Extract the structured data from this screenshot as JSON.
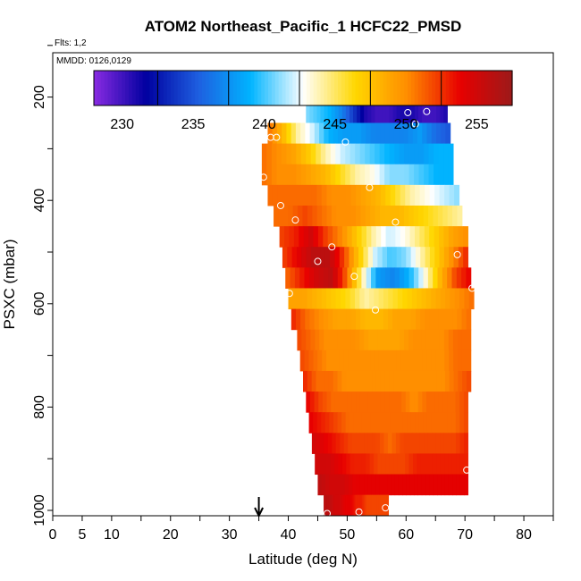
{
  "chart_data": {
    "type": "heatmap",
    "title": "ATOM2 Northeast_Pacific_1 HCFC22_PMSD",
    "info_lines": [
      "Flts: 1,2",
      "MMDD: 0126,0129"
    ],
    "xlabel": "Latitude (deg N)",
    "ylabel": "PSXC (mbar)",
    "xlim": [
      0,
      85
    ],
    "ylim": [
      1000,
      0
    ],
    "xticks": [
      0,
      5,
      10,
      20,
      30,
      40,
      50,
      60,
      70,
      80
    ],
    "yticks": [
      200,
      400,
      600,
      800,
      1000
    ],
    "colorbar": {
      "min": 228,
      "max": 257.5,
      "ticks": [
        230,
        235,
        240,
        245,
        250,
        255
      ],
      "colors": [
        "#8a2be2",
        "#0000a0",
        "#1e5fe0",
        "#00b4ff",
        "#ffffff",
        "#ffd700",
        "#ff8c00",
        "#e80000",
        "#9c1a1a"
      ]
    },
    "arrow_latitude": 35,
    "rows": [
      {
        "p": 230,
        "x0": 43,
        "x1": 67,
        "v": [
          241,
          240,
          239,
          237,
          234,
          231,
          230,
          230,
          231,
          231,
          230,
          230,
          231
        ]
      },
      {
        "p": 270,
        "x0": 36.5,
        "x1": 67.5,
        "v": [
          251,
          248,
          244,
          242,
          239,
          238,
          238,
          237,
          237,
          237,
          238,
          236,
          235
        ]
      },
      {
        "p": 310,
        "x0": 35.5,
        "x1": 68,
        "v": [
          251,
          250,
          249,
          247,
          244,
          242,
          241,
          240,
          239,
          238,
          238,
          239,
          239
        ]
      },
      {
        "p": 350,
        "x0": 35.5,
        "x1": 68,
        "v": [
          251,
          250,
          250,
          249,
          248,
          246,
          244,
          243,
          241,
          241,
          240,
          239,
          239
        ]
      },
      {
        "p": 390,
        "x0": 36.5,
        "x1": 69,
        "v": [
          251,
          251,
          251,
          251,
          250,
          250,
          249,
          248,
          246,
          244,
          243,
          242,
          241
        ]
      },
      {
        "p": 430,
        "x0": 37.5,
        "x1": 69.5,
        "v": [
          251,
          251,
          252,
          251,
          250,
          250,
          249,
          248,
          248,
          247,
          246,
          245,
          244
        ]
      },
      {
        "p": 470,
        "x0": 38.5,
        "x1": 70.5,
        "v": [
          252,
          253,
          255,
          252,
          250,
          247,
          244,
          242,
          243,
          245,
          247,
          249,
          250
        ]
      },
      {
        "p": 510,
        "x0": 39,
        "x1": 70.5,
        "v": [
          252,
          254,
          256,
          256,
          252,
          247,
          242,
          240,
          241,
          244,
          247,
          250,
          253
        ]
      },
      {
        "p": 550,
        "x0": 39.5,
        "x1": 71,
        "v": [
          251,
          253,
          255,
          256,
          251,
          244,
          238,
          237,
          239,
          243,
          248,
          252,
          254
        ]
      },
      {
        "p": 590,
        "x0": 40,
        "x1": 71.5,
        "v": [
          249,
          249,
          248,
          247,
          246,
          244,
          245,
          246,
          247,
          248,
          249,
          250,
          251
        ]
      },
      {
        "p": 630,
        "x0": 40.5,
        "x1": 71,
        "v": [
          253,
          251,
          250,
          249,
          249,
          248,
          248,
          249,
          249,
          250,
          250,
          250,
          251
        ]
      },
      {
        "p": 670,
        "x0": 41.5,
        "x1": 71,
        "v": [
          252,
          251,
          250,
          250,
          250,
          249,
          249,
          249,
          250,
          250,
          250,
          251,
          251
        ]
      },
      {
        "p": 710,
        "x0": 42,
        "x1": 71,
        "v": [
          252,
          251,
          250,
          250,
          250,
          250,
          250,
          250,
          250,
          250,
          250,
          251,
          251
        ]
      },
      {
        "p": 750,
        "x0": 42.5,
        "x1": 71,
        "v": [
          253,
          251,
          251,
          250,
          250,
          250,
          250,
          250,
          250,
          250,
          250,
          251,
          252
        ]
      },
      {
        "p": 790,
        "x0": 43,
        "x1": 70.5,
        "v": [
          254,
          252,
          251,
          251,
          251,
          251,
          251,
          251,
          250,
          251,
          251,
          251,
          252
        ]
      },
      {
        "p": 830,
        "x0": 43.5,
        "x1": 70.5,
        "v": [
          254,
          253,
          252,
          251,
          251,
          251,
          251,
          251,
          251,
          251,
          251,
          251,
          252
        ]
      },
      {
        "p": 870,
        "x0": 44,
        "x1": 70.5,
        "v": [
          255,
          254,
          253,
          252,
          252,
          252,
          251,
          252,
          252,
          252,
          252,
          252,
          253
        ]
      },
      {
        "p": 910,
        "x0": 44.5,
        "x1": 70.5,
        "v": [
          255,
          255,
          254,
          253,
          253,
          252,
          252,
          252,
          253,
          253,
          253,
          253,
          253
        ]
      },
      {
        "p": 950,
        "x0": 45,
        "x1": 70.5,
        "v": [
          256,
          255,
          255,
          254,
          254,
          254,
          254,
          254,
          254,
          254,
          254,
          254,
          254
        ]
      },
      {
        "p": 990,
        "x0": 46,
        "x1": 57,
        "v": [
          256,
          256,
          255,
          255,
          254,
          254,
          253,
          253,
          252,
          252,
          252,
          252,
          252
        ]
      }
    ],
    "points": [
      {
        "lat": 66.3,
        "p": 185,
        "v": 228
      },
      {
        "lat": 66.3,
        "p": 195,
        "v": 228
      },
      {
        "lat": 66.3,
        "p": 205,
        "v": 228
      },
      {
        "lat": 60.3,
        "p": 230
      },
      {
        "lat": 63.5,
        "p": 228
      },
      {
        "lat": 61.6,
        "p": 252
      },
      {
        "lat": 37,
        "p": 278
      },
      {
        "lat": 38,
        "p": 278
      },
      {
        "lat": 49.7,
        "p": 287
      },
      {
        "lat": 35.8,
        "p": 355
      },
      {
        "lat": 53.8,
        "p": 375
      },
      {
        "lat": 38.7,
        "p": 410
      },
      {
        "lat": 41.2,
        "p": 438
      },
      {
        "lat": 58.2,
        "p": 442
      },
      {
        "lat": 47.4,
        "p": 490
      },
      {
        "lat": 68.7,
        "p": 505
      },
      {
        "lat": 45,
        "p": 518
      },
      {
        "lat": 51.2,
        "p": 547
      },
      {
        "lat": 40.2,
        "p": 580
      },
      {
        "lat": 71.2,
        "p": 570
      },
      {
        "lat": 54.8,
        "p": 612
      },
      {
        "lat": 70.3,
        "p": 922
      },
      {
        "lat": 46.6,
        "p": 1006
      },
      {
        "lat": 52,
        "p": 1003
      },
      {
        "lat": 56.5,
        "p": 995
      }
    ]
  }
}
